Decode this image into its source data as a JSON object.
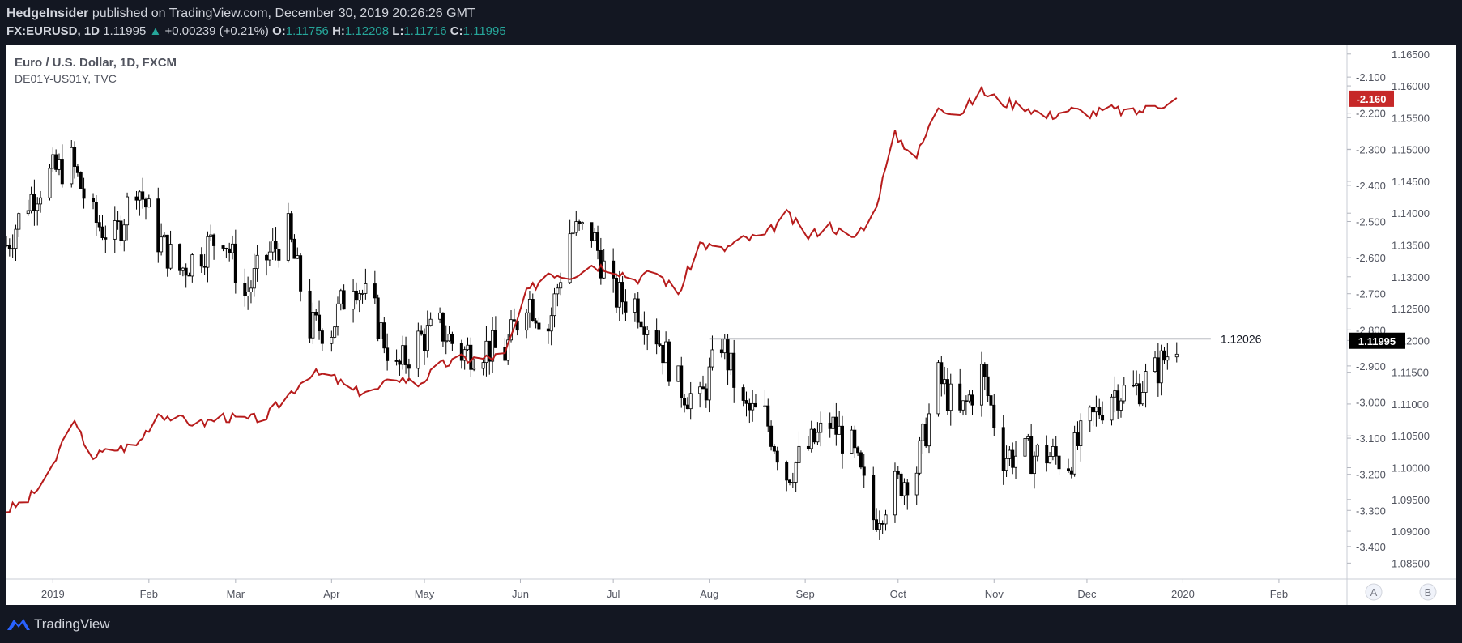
{
  "header": {
    "publisher": "HedgeInsider",
    "published_text": "published on TradingView.com, December 30, 2019 20:26:26 GMT",
    "symbol": "FX:EURUSD, 1D",
    "last": "1.11995",
    "change_arrow": "▲",
    "change": "+0.00239 (+0.21%)",
    "o_label": "O:",
    "o": "1.11756",
    "h_label": "H:",
    "h": "1.12208",
    "l_label": "L:",
    "l": "1.11716",
    "c_label": "C:",
    "c": "1.11995"
  },
  "chart_data": {
    "type": "candlestick",
    "title": "Euro / U.S. Dollar, 1D, FXCM",
    "overlay_label": "DE01Y-US01Y, TVC",
    "x_ticks": [
      "2019",
      "Feb",
      "Mar",
      "Apr",
      "May",
      "Jun",
      "Jul",
      "Aug",
      "Sep",
      "Oct",
      "Nov",
      "Dec",
      "2020",
      "Feb"
    ],
    "y_right_ticks": [
      "1.16500",
      "1.16000",
      "1.15500",
      "1.15000",
      "1.14500",
      "1.14000",
      "1.13500",
      "1.13000",
      "1.12500",
      "1.12000",
      "1.11500",
      "1.11000",
      "1.10500",
      "1.10000",
      "1.09500",
      "1.09000",
      "1.08500"
    ],
    "y_left_ticks": [
      "-2.100",
      "-2.200",
      "-2.300",
      "-2.400",
      "-2.500",
      "-2.600",
      "-2.700",
      "-2.800",
      "-2.900",
      "-3.000",
      "-3.100",
      "-3.200",
      "-3.300",
      "-3.400"
    ],
    "ylim_price": [
      1.0825,
      1.1665
    ],
    "ylim_spread": [
      -3.49,
      -2.01
    ],
    "horizontal_line": {
      "value": 1.12026,
      "label": "1.12026"
    },
    "last_price_label": "1.11995",
    "last_spread_label": "-2.160",
    "series": [
      {
        "name": "EURUSD",
        "style": "candles",
        "points": [
          [
            "2018-12-17",
            1.135
          ],
          [
            "2018-12-24",
            1.142
          ],
          [
            "2018-12-31",
            1.146
          ],
          [
            "2019-01-07",
            1.148
          ],
          [
            "2019-01-14",
            1.139
          ],
          [
            "2019-01-21",
            1.136
          ],
          [
            "2019-01-28",
            1.145
          ],
          [
            "2019-02-04",
            1.136
          ],
          [
            "2019-02-11",
            1.131
          ],
          [
            "2019-02-18",
            1.134
          ],
          [
            "2019-02-25",
            1.137
          ],
          [
            "2019-03-04",
            1.127
          ],
          [
            "2019-03-11",
            1.133
          ],
          [
            "2019-03-18",
            1.137
          ],
          [
            "2019-03-25",
            1.122
          ],
          [
            "2019-04-01",
            1.122
          ],
          [
            "2019-04-08",
            1.13
          ],
          [
            "2019-04-15",
            1.124
          ],
          [
            "2019-04-22",
            1.115
          ],
          [
            "2019-04-29",
            1.12
          ],
          [
            "2019-05-06",
            1.122
          ],
          [
            "2019-05-13",
            1.118
          ],
          [
            "2019-05-20",
            1.119
          ],
          [
            "2019-05-27",
            1.118
          ],
          [
            "2019-06-03",
            1.127
          ],
          [
            "2019-06-10",
            1.122
          ],
          [
            "2019-06-17",
            1.137
          ],
          [
            "2019-06-24",
            1.137
          ],
          [
            "2019-07-01",
            1.127
          ],
          [
            "2019-07-08",
            1.126
          ],
          [
            "2019-07-15",
            1.121
          ],
          [
            "2019-07-22",
            1.113
          ],
          [
            "2019-07-29",
            1.11
          ],
          [
            "2019-08-05",
            1.12
          ],
          [
            "2019-08-12",
            1.109
          ],
          [
            "2019-08-19",
            1.108
          ],
          [
            "2019-08-26",
            1.099
          ],
          [
            "2019-09-02",
            1.103
          ],
          [
            "2019-09-09",
            1.107
          ],
          [
            "2019-09-16",
            1.103
          ],
          [
            "2019-09-23",
            1.092
          ],
          [
            "2019-09-30",
            1.097
          ],
          [
            "2019-10-07",
            1.1
          ],
          [
            "2019-10-14",
            1.114
          ],
          [
            "2019-10-21",
            1.108
          ],
          [
            "2019-10-28",
            1.115
          ],
          [
            "2019-11-04",
            1.102
          ],
          [
            "2019-11-11",
            1.102
          ],
          [
            "2019-11-18",
            1.102
          ],
          [
            "2019-11-25",
            1.101
          ],
          [
            "2019-12-02",
            1.107
          ],
          [
            "2019-12-09",
            1.112
          ],
          [
            "2019-12-16",
            1.112
          ],
          [
            "2019-12-23",
            1.115
          ],
          [
            "2019-12-30",
            1.12
          ]
        ]
      },
      {
        "name": "DE01Y-US01Y",
        "style": "line",
        "points": [
          [
            "2018-12-17",
            -3.3
          ],
          [
            "2018-12-24",
            -3.27
          ],
          [
            "2018-12-31",
            -3.2
          ],
          [
            "2019-01-07",
            -3.05
          ],
          [
            "2019-01-14",
            -3.15
          ],
          [
            "2019-01-21",
            -3.13
          ],
          [
            "2019-01-28",
            -3.12
          ],
          [
            "2019-02-04",
            -3.03
          ],
          [
            "2019-02-11",
            -3.05
          ],
          [
            "2019-02-18",
            -3.06
          ],
          [
            "2019-02-25",
            -3.04
          ],
          [
            "2019-03-04",
            -3.05
          ],
          [
            "2019-03-11",
            -3.04
          ],
          [
            "2019-03-18",
            -2.98
          ],
          [
            "2019-03-25",
            -2.92
          ],
          [
            "2019-04-01",
            -2.93
          ],
          [
            "2019-04-08",
            -2.97
          ],
          [
            "2019-04-15",
            -2.97
          ],
          [
            "2019-04-22",
            -2.93
          ],
          [
            "2019-04-29",
            -2.95
          ],
          [
            "2019-05-06",
            -2.9
          ],
          [
            "2019-05-13",
            -2.88
          ],
          [
            "2019-05-20",
            -2.88
          ],
          [
            "2019-05-27",
            -2.87
          ],
          [
            "2019-06-03",
            -2.7
          ],
          [
            "2019-06-10",
            -2.64
          ],
          [
            "2019-06-17",
            -2.65
          ],
          [
            "2019-06-24",
            -2.62
          ],
          [
            "2019-07-01",
            -2.63
          ],
          [
            "2019-07-08",
            -2.66
          ],
          [
            "2019-07-15",
            -2.64
          ],
          [
            "2019-07-22",
            -2.7
          ],
          [
            "2019-07-29",
            -2.56
          ],
          [
            "2019-08-05",
            -2.58
          ],
          [
            "2019-08-12",
            -2.55
          ],
          [
            "2019-08-19",
            -2.54
          ],
          [
            "2019-08-26",
            -2.48
          ],
          [
            "2019-09-02",
            -2.54
          ],
          [
            "2019-09-09",
            -2.51
          ],
          [
            "2019-09-16",
            -2.55
          ],
          [
            "2019-09-23",
            -2.48
          ],
          [
            "2019-09-30",
            -2.26
          ],
          [
            "2019-10-07",
            -2.32
          ],
          [
            "2019-10-14",
            -2.18
          ],
          [
            "2019-10-21",
            -2.2
          ],
          [
            "2019-10-28",
            -2.14
          ],
          [
            "2019-11-04",
            -2.17
          ],
          [
            "2019-11-11",
            -2.18
          ],
          [
            "2019-11-18",
            -2.21
          ],
          [
            "2019-11-25",
            -2.19
          ],
          [
            "2019-12-02",
            -2.2
          ],
          [
            "2019-12-09",
            -2.19
          ],
          [
            "2019-12-16",
            -2.2
          ],
          [
            "2019-12-23",
            -2.18
          ],
          [
            "2019-12-30",
            -2.16
          ]
        ]
      }
    ],
    "colors": {
      "candle": "#000000",
      "spread": "#b71c1c",
      "spread_tag": "#c62828",
      "last_tag": "#000000"
    },
    "pane_labels": [
      "A",
      "B"
    ]
  },
  "footer": {
    "brand": "TradingView"
  }
}
